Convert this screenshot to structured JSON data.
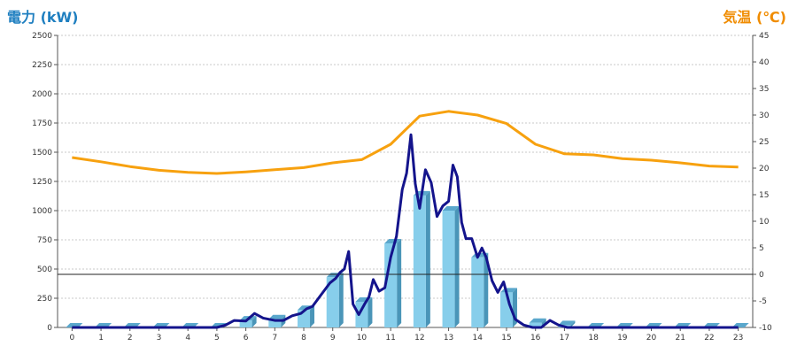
{
  "chart_data": {
    "type": "bar",
    "title_left": "電力 (kW)",
    "title_right": "気温 (℃)",
    "categories": [
      "0",
      "1",
      "2",
      "3",
      "4",
      "5",
      "6",
      "7",
      "8",
      "9",
      "10",
      "11",
      "12",
      "13",
      "14",
      "15",
      "16",
      "17",
      "18",
      "19",
      "20",
      "21",
      "22",
      "23"
    ],
    "y_left": {
      "min": 0,
      "max": 2500,
      "ticks": [
        0,
        250,
        500,
        750,
        1000,
        1250,
        1500,
        1750,
        2000,
        2250,
        2500
      ]
    },
    "y_right": {
      "min": -10,
      "max": 45,
      "ticks": [
        -10,
        -5,
        0,
        5,
        10,
        15,
        20,
        25,
        30,
        35,
        40,
        45
      ]
    },
    "series": [
      {
        "kind": "bar",
        "axis": "left",
        "color": "#87ceeb",
        "values": [
          0,
          0,
          0,
          0,
          0,
          0,
          60,
          70,
          150,
          430,
          220,
          720,
          1130,
          1000,
          600,
          300,
          40,
          20,
          0,
          0,
          0,
          0,
          0,
          0
        ]
      },
      {
        "kind": "line",
        "axis": "left",
        "color": "#14148c",
        "x": [
          0,
          0.5,
          1,
          1.5,
          2,
          2.5,
          3,
          3.5,
          4,
          4.5,
          5,
          5.3,
          5.6,
          6,
          6.3,
          6.6,
          7,
          7.3,
          7.6,
          7.9,
          8.1,
          8.3,
          8.6,
          8.9,
          9.1,
          9.25,
          9.4,
          9.55,
          9.7,
          9.9,
          10.1,
          10.25,
          10.4,
          10.6,
          10.8,
          11,
          11.2,
          11.4,
          11.55,
          11.7,
          11.85,
          12,
          12.2,
          12.4,
          12.6,
          12.8,
          13,
          13.15,
          13.3,
          13.45,
          13.6,
          13.8,
          14,
          14.15,
          14.3,
          14.5,
          14.7,
          14.9,
          15.1,
          15.3,
          15.6,
          15.9,
          16.2,
          16.5,
          16.8,
          17.1,
          17.5,
          18,
          19,
          20,
          21,
          22,
          23
        ],
        "values": [
          0,
          0,
          0,
          0,
          0,
          0,
          0,
          0,
          0,
          0,
          0,
          20,
          60,
          55,
          120,
          80,
          60,
          60,
          100,
          120,
          160,
          180,
          280,
          380,
          420,
          470,
          500,
          650,
          200,
          110,
          200,
          260,
          410,
          310,
          340,
          600,
          780,
          1180,
          1320,
          1650,
          1230,
          1020,
          1350,
          1240,
          950,
          1040,
          1080,
          1390,
          1290,
          900,
          760,
          760,
          600,
          680,
          600,
          400,
          300,
          390,
          200,
          70,
          20,
          0,
          0,
          60,
          20,
          0,
          0,
          0,
          0,
          0,
          0,
          0,
          0
        ]
      },
      {
        "kind": "line",
        "axis": "right",
        "color": "#f7a10f",
        "values": [
          22,
          21.2,
          20.3,
          19.6,
          19.2,
          19.0,
          19.3,
          19.7,
          20.1,
          21.0,
          21.6,
          24.5,
          29.8,
          30.7,
          30.0,
          28.4,
          24.5,
          22.7,
          22.5,
          21.8,
          21.5,
          21.0,
          20.4,
          20.2
        ]
      }
    ],
    "reference_line": {
      "axis": "right",
      "value": 0
    },
    "grid": true
  }
}
